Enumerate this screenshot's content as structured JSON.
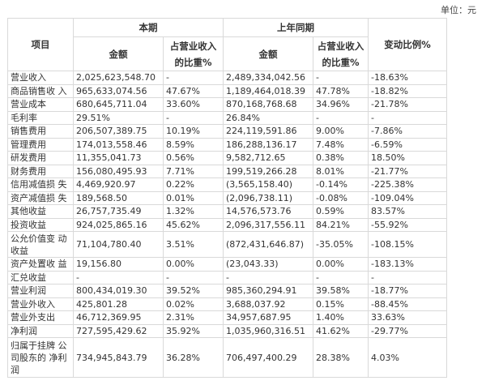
{
  "unit_label": "单位：元",
  "header": {
    "item": "项目",
    "current_period": "本期",
    "prior_period": "上年同期",
    "amount": "金额",
    "ratio": "占营业收入的比重%",
    "change": "变动比例%"
  },
  "rows": [
    {
      "item": "营业收入",
      "cur_amount": "2,025,623,548.70",
      "cur_ratio": "-",
      "prev_amount": "2,489,334,042.56",
      "prev_ratio": "-",
      "change": "-18.63%"
    },
    {
      "item": "商品销售收 入",
      "cur_amount": "965,633,074.56",
      "cur_ratio": "47.67%",
      "prev_amount": "1,189,464,018.39",
      "prev_ratio": "47.78%",
      "change": "-18.82%"
    },
    {
      "item": "营业成本",
      "cur_amount": "680,645,711.04",
      "cur_ratio": "33.60%",
      "prev_amount": "870,168,768.68",
      "prev_ratio": "34.96%",
      "change": "-21.78%"
    },
    {
      "item": "毛利率",
      "cur_amount": "29.51%",
      "cur_ratio": "-",
      "prev_amount": "26.84%",
      "prev_ratio": "-",
      "change": "-"
    },
    {
      "item": "销售费用",
      "cur_amount": "206,507,389.75",
      "cur_ratio": "10.19%",
      "prev_amount": "224,119,591.86",
      "prev_ratio": "9.00%",
      "change": "-7.86%"
    },
    {
      "item": "管理费用",
      "cur_amount": "174,013,558.46",
      "cur_ratio": "8.59%",
      "prev_amount": "186,288,136.17",
      "prev_ratio": "7.48%",
      "change": "-6.59%"
    },
    {
      "item": "研发费用",
      "cur_amount": "11,355,041.73",
      "cur_ratio": "0.56%",
      "prev_amount": "9,582,712.65",
      "prev_ratio": "0.38%",
      "change": "18.50%"
    },
    {
      "item": "财务费用",
      "cur_amount": "156,080,495.93",
      "cur_ratio": "7.71%",
      "prev_amount": "199,519,266.28",
      "prev_ratio": "8.01%",
      "change": "-21.77%"
    },
    {
      "item": "信用减值损 失",
      "cur_amount": "4,469,920.97",
      "cur_ratio": "0.22%",
      "prev_amount": "(3,565,158.40)",
      "prev_ratio": "-0.14%",
      "change": "-225.38%"
    },
    {
      "item": "资产减值损 失",
      "cur_amount": "189,568.50",
      "cur_ratio": "0.01%",
      "prev_amount": "(2,096,738.11)",
      "prev_ratio": "-0.08%",
      "change": "-109.04%"
    },
    {
      "item": "其他收益",
      "cur_amount": "26,757,735.49",
      "cur_ratio": "1.32%",
      "prev_amount": "14,576,573.76",
      "prev_ratio": "0.59%",
      "change": "83.57%"
    },
    {
      "item": "投资收益",
      "cur_amount": "924,025,865.16",
      "cur_ratio": "45.62%",
      "prev_amount": "2,096,317,556.11",
      "prev_ratio": "84.21%",
      "change": "-55.92%"
    },
    {
      "item": "公允价值变 动收益",
      "cur_amount": "71,104,780.40",
      "cur_ratio": "3.51%",
      "prev_amount": "(872,431,646.87)",
      "prev_ratio": "-35.05%",
      "change": "-108.15%"
    },
    {
      "item": "资产处置收 益",
      "cur_amount": "19,156.80",
      "cur_ratio": "0.00%",
      "prev_amount": "(23,043.33)",
      "prev_ratio": "0.00%",
      "change": "-183.13%"
    },
    {
      "item": "汇兑收益",
      "cur_amount": "-",
      "cur_ratio": "-",
      "prev_amount": "-",
      "prev_ratio": "-",
      "change": "-"
    },
    {
      "item": "营业利润",
      "cur_amount": "800,434,019.30",
      "cur_ratio": "39.52%",
      "prev_amount": "985,360,294.91",
      "prev_ratio": "39.58%",
      "change": "-18.77%"
    },
    {
      "item": "营业外收入",
      "cur_amount": "425,801.28",
      "cur_ratio": "0.02%",
      "prev_amount": "3,688,037.92",
      "prev_ratio": "0.15%",
      "change": "-88.45%"
    },
    {
      "item": "营业外支出",
      "cur_amount": "46,712,369.95",
      "cur_ratio": "2.31%",
      "prev_amount": "34,957,687.95",
      "prev_ratio": "1.40%",
      "change": "33.63%"
    },
    {
      "item": "净利润",
      "cur_amount": "727,595,429.62",
      "cur_ratio": "35.92%",
      "prev_amount": "1,035,960,316.51",
      "prev_ratio": "41.62%",
      "change": "-29.77%"
    },
    {
      "item": "归属于挂牌 公司股东的 净利润",
      "cur_amount": "734,945,843.79",
      "cur_ratio": "36.28%",
      "prev_amount": "706,497,400.29",
      "prev_ratio": "28.38%",
      "change": "4.03%"
    }
  ]
}
